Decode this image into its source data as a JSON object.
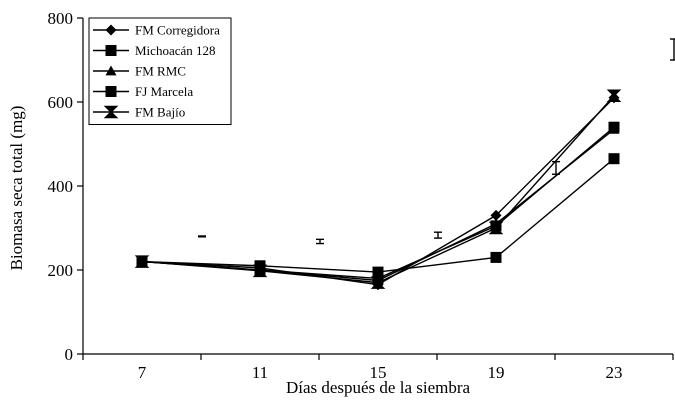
{
  "chart_data": {
    "type": "line",
    "x_label": "Días después de la siembra",
    "y_label": "Biomasa seca total (mg)",
    "categories": [
      "7",
      "11",
      "15",
      "19",
      "23"
    ],
    "ylim": [
      0,
      800
    ],
    "yticks": [
      0,
      200,
      400,
      600,
      800
    ],
    "legend": "top-left",
    "series": [
      {
        "name": "FM Corregidora",
        "color": "#000000",
        "marker": "diamond",
        "values": [
          220,
          205,
          165,
          330,
          610
        ]
      },
      {
        "name": "Michoacán 128",
        "color": "#000000",
        "marker": "square",
        "values": [
          220,
          210,
          195,
          230,
          465
        ]
      },
      {
        "name": "FM RMC",
        "color": "#000000",
        "marker": "triangle",
        "values": [
          220,
          200,
          175,
          310,
          535
        ]
      },
      {
        "name": "FJ Marcela",
        "color": "#000000",
        "marker": "square",
        "values": [
          220,
          200,
          180,
          305,
          540
        ]
      },
      {
        "name": "FM Bajío",
        "color": "#000000",
        "marker": "bowtie",
        "values": [
          220,
          198,
          170,
          300,
          615
        ]
      }
    ],
    "error_bars": [
      {
        "center": 280,
        "error": 1
      },
      {
        "center": 268,
        "error": 5
      },
      {
        "center": 283,
        "error": 7
      },
      {
        "center": 443,
        "error": 15
      },
      {
        "center": 725,
        "error": 25
      }
    ]
  }
}
